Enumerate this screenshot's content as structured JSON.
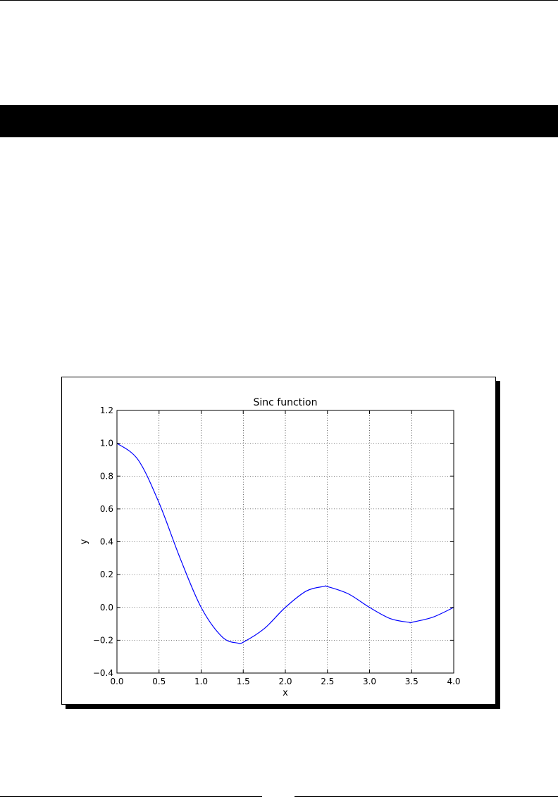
{
  "chart_data": {
    "type": "line",
    "title": "Sinc function",
    "xlabel": "x",
    "ylabel": "y",
    "xlim": [
      0.0,
      4.0
    ],
    "ylim": [
      -0.4,
      1.2
    ],
    "grid": true,
    "x_ticks": [
      "0.0",
      "0.5",
      "1.0",
      "1.5",
      "2.0",
      "2.5",
      "3.0",
      "3.5",
      "4.0"
    ],
    "y_ticks": [
      "1.2",
      "1.0",
      "0.8",
      "0.6",
      "0.4",
      "0.2",
      "0.0",
      "−0.2",
      "−0.4"
    ],
    "series": [
      {
        "color": "#0000ff",
        "x": [
          0.0,
          0.25,
          0.5,
          0.75,
          1.0,
          1.25,
          1.43,
          1.5,
          1.75,
          2.0,
          2.25,
          2.46,
          2.5,
          2.75,
          3.0,
          3.25,
          3.47,
          3.5,
          3.75,
          4.0
        ],
        "y": [
          1.0,
          0.9,
          0.637,
          0.3,
          0.0,
          -0.18,
          -0.217,
          -0.212,
          -0.129,
          0.0,
          0.1,
          0.128,
          0.127,
          0.082,
          0.0,
          -0.069,
          -0.091,
          -0.091,
          -0.06,
          0.0
        ]
      }
    ]
  }
}
